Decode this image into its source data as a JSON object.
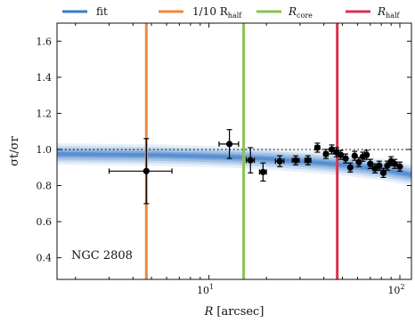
{
  "chart_data": {
    "type": "scatter",
    "xscale": "log",
    "xlim": [
      1.6,
      115
    ],
    "ylim": [
      0.28,
      1.7
    ],
    "xlabel": "R [arcsec]",
    "xlabel_main": "R",
    "xlabel_unit": "[arcsec]",
    "ylabel": "σt/σr",
    "yticks": [
      0.4,
      0.6,
      0.8,
      1.0,
      1.2,
      1.4,
      1.6
    ],
    "ytick_labels": [
      "0.4",
      "0.6",
      "0.8",
      "1.0",
      "1.2",
      "1.4",
      "1.6"
    ],
    "xtick_labels": [
      {
        "value": 10,
        "base": "10",
        "exp": "1"
      },
      {
        "value": 100,
        "base": "10",
        "exp": "2"
      }
    ],
    "annotation": "NGC 2808",
    "reference_line": {
      "y": 1.0,
      "style": "dotted"
    },
    "legend": {
      "placement": "top-outside",
      "entries": [
        {
          "label_main": "fit",
          "label_sub": "",
          "color": "#3a7ac8"
        },
        {
          "label_main": "1/10 R",
          "label_sub": "half",
          "color": "#f0883c"
        },
        {
          "label_main": "R",
          "label_sub": "core",
          "color": "#8cc152"
        },
        {
          "label_main": "R",
          "label_sub": "half",
          "color": "#d6334f"
        }
      ]
    },
    "vertical_lines": [
      {
        "name": "tenth-r-half",
        "x": 4.7,
        "color": "#f0883c"
      },
      {
        "name": "r-core",
        "x": 15.2,
        "color": "#8cc152"
      },
      {
        "name": "r-half",
        "x": 47,
        "color": "#d6334f"
      }
    ],
    "fit": {
      "color": "#3a7ac8",
      "x": [
        1.6,
        3,
        5,
        10,
        15,
        20,
        30,
        40,
        50,
        60,
        70,
        80,
        90,
        100,
        115
      ],
      "y": [
        0.975,
        0.972,
        0.97,
        0.962,
        0.955,
        0.948,
        0.935,
        0.925,
        0.915,
        0.905,
        0.897,
        0.89,
        0.88,
        0.872,
        0.86
      ]
    },
    "points": [
      {
        "x": 4.7,
        "y": 0.88,
        "xerr": [
          1.7,
          1.7
        ],
        "yerr": [
          0.18,
          0.18
        ]
      },
      {
        "x": 12.8,
        "y": 1.03,
        "xerr": [
          1.5,
          1.5
        ],
        "yerr": [
          0.08,
          0.08
        ]
      },
      {
        "x": 16.5,
        "y": 0.94,
        "xerr": [
          0.8,
          0.8
        ],
        "yerr": [
          0.07,
          0.07
        ]
      },
      {
        "x": 19.2,
        "y": 0.875,
        "xerr": [
          0.8,
          0.8
        ],
        "yerr": [
          0.05,
          0.05
        ]
      },
      {
        "x": 23.5,
        "y": 0.935,
        "xerr": [
          1.2,
          1.2
        ],
        "yerr": [
          0.03,
          0.03
        ]
      },
      {
        "x": 28.5,
        "y": 0.94,
        "xerr": [
          1.2,
          1.2
        ],
        "yerr": [
          0.025,
          0.025
        ]
      },
      {
        "x": 33,
        "y": 0.94,
        "xerr": [
          1.2,
          1.2
        ],
        "yerr": [
          0.025,
          0.025
        ]
      },
      {
        "x": 37,
        "y": 1.01,
        "xerr": [
          1.0,
          1.0
        ],
        "yerr": [
          0.025,
          0.025
        ]
      },
      {
        "x": 41,
        "y": 0.975,
        "xerr": [
          1.0,
          1.0
        ],
        "yerr": [
          0.025,
          0.025
        ]
      },
      {
        "x": 44,
        "y": 1.0,
        "xerr": [
          1.0,
          1.0
        ],
        "yerr": [
          0.025,
          0.025
        ]
      },
      {
        "x": 46.5,
        "y": 0.985,
        "xerr": [
          1.0,
          1.0
        ],
        "yerr": [
          0.025,
          0.025
        ]
      },
      {
        "x": 49,
        "y": 0.97,
        "xerr": [
          1.0,
          1.0
        ],
        "yerr": [
          0.025,
          0.025
        ]
      },
      {
        "x": 52,
        "y": 0.95,
        "xerr": [
          1.0,
          1.0
        ],
        "yerr": [
          0.025,
          0.025
        ]
      },
      {
        "x": 55,
        "y": 0.9,
        "xerr": [
          1.0,
          1.0
        ],
        "yerr": [
          0.025,
          0.025
        ]
      },
      {
        "x": 58,
        "y": 0.965,
        "xerr": [
          1.0,
          1.0
        ],
        "yerr": [
          0.025,
          0.025
        ]
      },
      {
        "x": 61,
        "y": 0.93,
        "xerr": [
          1.0,
          1.0
        ],
        "yerr": [
          0.025,
          0.025
        ]
      },
      {
        "x": 64,
        "y": 0.96,
        "xerr": [
          1.0,
          1.0
        ],
        "yerr": [
          0.025,
          0.025
        ]
      },
      {
        "x": 67,
        "y": 0.97,
        "xerr": [
          1.0,
          1.0
        ],
        "yerr": [
          0.025,
          0.025
        ]
      },
      {
        "x": 70,
        "y": 0.92,
        "xerr": [
          1.0,
          1.0
        ],
        "yerr": [
          0.025,
          0.025
        ]
      },
      {
        "x": 74,
        "y": 0.895,
        "xerr": [
          1.0,
          1.0
        ],
        "yerr": [
          0.025,
          0.025
        ]
      },
      {
        "x": 78,
        "y": 0.91,
        "xerr": [
          1.0,
          1.0
        ],
        "yerr": [
          0.025,
          0.025
        ]
      },
      {
        "x": 82,
        "y": 0.87,
        "xerr": [
          1.0,
          1.0
        ],
        "yerr": [
          0.025,
          0.025
        ]
      },
      {
        "x": 86,
        "y": 0.91,
        "xerr": [
          1.0,
          1.0
        ],
        "yerr": [
          0.025,
          0.025
        ]
      },
      {
        "x": 90,
        "y": 0.935,
        "xerr": [
          1.0,
          1.0
        ],
        "yerr": [
          0.025,
          0.025
        ]
      },
      {
        "x": 94,
        "y": 0.92,
        "xerr": [
          1.0,
          1.0
        ],
        "yerr": [
          0.025,
          0.025
        ]
      },
      {
        "x": 100,
        "y": 0.905,
        "xerr": [
          1.0,
          1.0
        ],
        "yerr": [
          0.025,
          0.025
        ]
      }
    ]
  }
}
